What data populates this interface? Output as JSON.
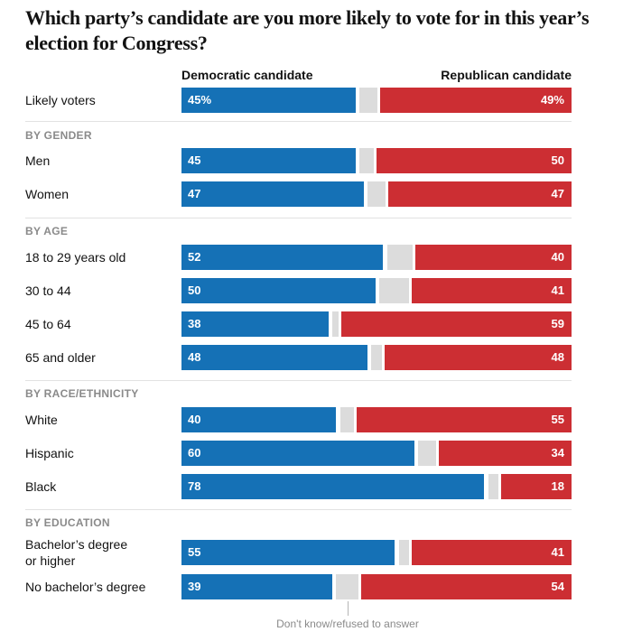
{
  "chart_data": {
    "type": "bar",
    "orientation": "horizontal-stacked",
    "title": "Which party’s candidate are you more likely to vote for in this year’s election for Congress?",
    "series": [
      {
        "name": "Democratic candidate",
        "color": "#1571b6"
      },
      {
        "name": "Don't know/refused to answer",
        "color": "#dcdcdc"
      },
      {
        "name": "Republican candidate",
        "color": "#cc2e33"
      }
    ],
    "column_headers": {
      "left": "Democratic candidate",
      "right": "Republican candidate"
    },
    "annotation": "Don't know/refused to answer",
    "groups": [
      {
        "heading": "",
        "rows": [
          {
            "label": "Likely voters",
            "dem": 45,
            "rep": 49,
            "dem_label": "45%",
            "rep_label": "49%"
          }
        ]
      },
      {
        "heading": "BY GENDER",
        "rows": [
          {
            "label": "Men",
            "dem": 45,
            "rep": 50,
            "dem_label": "45",
            "rep_label": "50"
          },
          {
            "label": "Women",
            "dem": 47,
            "rep": 47,
            "dem_label": "47",
            "rep_label": "47"
          }
        ]
      },
      {
        "heading": "BY AGE",
        "rows": [
          {
            "label": "18 to 29 years old",
            "dem": 52,
            "rep": 40,
            "dem_label": "52",
            "rep_label": "40"
          },
          {
            "label": "30 to 44",
            "dem": 50,
            "rep": 41,
            "dem_label": "50",
            "rep_label": "41"
          },
          {
            "label": "45 to 64",
            "dem": 38,
            "rep": 59,
            "dem_label": "38",
            "rep_label": "59"
          },
          {
            "label": "65 and older",
            "dem": 48,
            "rep": 48,
            "dem_label": "48",
            "rep_label": "48"
          }
        ]
      },
      {
        "heading": "BY RACE/ETHNICITY",
        "rows": [
          {
            "label": "White",
            "dem": 40,
            "rep": 55,
            "dem_label": "40",
            "rep_label": "55"
          },
          {
            "label": "Hispanic",
            "dem": 60,
            "rep": 34,
            "dem_label": "60",
            "rep_label": "34"
          },
          {
            "label": "Black",
            "dem": 78,
            "rep": 18,
            "dem_label": "78",
            "rep_label": "18"
          }
        ]
      },
      {
        "heading": "BY EDUCATION",
        "rows": [
          {
            "label": "Bachelor’s degree\nor higher",
            "dem": 55,
            "rep": 41,
            "dem_label": "55",
            "rep_label": "41"
          },
          {
            "label": "No bachelor’s degree",
            "dem": 39,
            "rep": 54,
            "dem_label": "39",
            "rep_label": "54"
          }
        ]
      }
    ],
    "xlim": [
      0,
      100
    ]
  }
}
